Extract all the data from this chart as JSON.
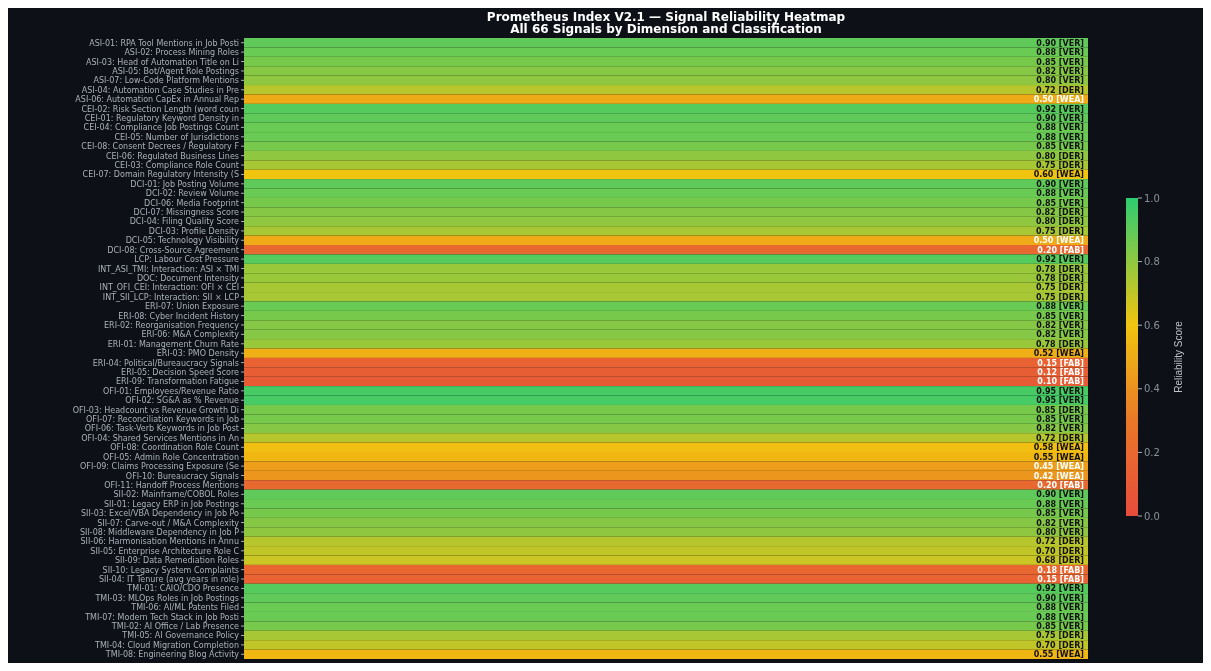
{
  "chart_data": {
    "type": "heatmap",
    "title": "Prometheus Index V2.1 — Signal Reliability Heatmap",
    "subtitle": "All 66 Signals by Dimension and Classification",
    "clabel": "Reliability Score",
    "categories": [
      null
    ],
    "y_categories": [
      "ASI-01: RPA Tool Mentions in Job Posti",
      "ASI-02: Process Mining Roles",
      "ASI-03: Head of Automation Title on Li",
      "ASI-05: Bot/Agent Role Postings",
      "ASI-07: Low-Code Platform Mentions",
      "ASI-04: Automation Case Studies in Pre",
      "ASI-06: Automation CapEx in Annual Rep",
      "CEI-02: Risk Section Length (word coun",
      "CEI-01: Regulatory Keyword Density in",
      "CEI-04: Compliance Job Postings Count",
      "CEI-05: Number of Jurisdictions",
      "CEI-08: Consent Decrees / Regulatory F",
      "CEI-06: Regulated Business Lines",
      "CEI-03: Compliance Role Count",
      "CEI-07: Domain Regulatory Intensity (S",
      "DCI-01: Job Posting Volume",
      "DCI-02: Review Volume",
      "DCI-06: Media Footprint",
      "DCI-07: Missingness Score",
      "DCI-04: Filing Quality Score",
      "DCI-03: Profile Density",
      "DCI-05: Technology Visibility",
      "DCI-08: Cross-Source Agreement",
      "LCP: Labour Cost Pressure",
      "INT_ASI_TMI: Interaction: ASI × TMI",
      "DOC: Document Intensity",
      "INT_OFI_CEI: Interaction: OFI × CEI",
      "INT_SII_LCP: Interaction: SII × LCP",
      "ERI-07: Union Exposure",
      "ERI-08: Cyber Incident History",
      "ERI-02: Reorganisation Frequency",
      "ERI-06: M&A Complexity",
      "ERI-01: Management Churn Rate",
      "ERI-03: PMO Density",
      "ERI-04: Political/Bureaucracy Signals",
      "ERI-05: Decision Speed Score",
      "ERI-09: Transformation Fatigue",
      "OFI-01: Employees/Revenue Ratio",
      "OFI-02: SG&A as % Revenue",
      "OFI-03: Headcount vs Revenue Growth Di",
      "OFI-07: Reconciliation Keywords in Job",
      "OFI-06: Task-Verb Keywords in Job Post",
      "OFI-04: Shared Services Mentions in An",
      "OFI-08: Coordination Role Count",
      "OFI-05: Admin Role Concentration",
      "OFI-09: Claims Processing Exposure (Se",
      "OFI-10: Bureaucracy Signals",
      "OFI-11: Handoff Process Mentions",
      "SII-02: Mainframe/COBOL Roles",
      "SII-01: Legacy ERP in Job Postings",
      "SII-03: Excel/VBA Dependency in Job Po",
      "SII-07: Carve-out / M&A Complexity",
      "SII-08: Middleware Dependency in Job P",
      "SII-06: Harmonisation Mentions in Annu",
      "SII-05: Enterprise Architecture Role C",
      "SII-09: Data Remediation Roles",
      "SII-10: Legacy System Complaints",
      "SII-04: IT Tenure (avg years in role)",
      "TMI-01: CAIO/CDO Presence",
      "TMI-03: MLOps Roles in Job Postings",
      "TMI-06: AI/ML Patents Filed",
      "TMI-07: Modern Tech Stack in Job Posti",
      "TMI-02: AI Office / Lab Presence",
      "TMI-05: AI Governance Policy",
      "TMI-04: Cloud Migration Completion",
      "TMI-08: Engineering Blog Activity"
    ],
    "cells": [
      [
        0.9
      ],
      [
        0.88
      ],
      [
        0.85
      ],
      [
        0.82
      ],
      [
        0.8
      ],
      [
        0.72
      ],
      [
        0.5
      ],
      [
        0.92
      ],
      [
        0.9
      ],
      [
        0.88
      ],
      [
        0.88
      ],
      [
        0.85
      ],
      [
        0.8
      ],
      [
        0.75
      ],
      [
        0.6
      ],
      [
        0.9
      ],
      [
        0.88
      ],
      [
        0.85
      ],
      [
        0.82
      ],
      [
        0.8
      ],
      [
        0.75
      ],
      [
        0.5
      ],
      [
        0.2
      ],
      [
        0.92
      ],
      [
        0.78
      ],
      [
        0.78
      ],
      [
        0.75
      ],
      [
        0.75
      ],
      [
        0.88
      ],
      [
        0.85
      ],
      [
        0.82
      ],
      [
        0.82
      ],
      [
        0.78
      ],
      [
        0.52
      ],
      [
        0.15
      ],
      [
        0.12
      ],
      [
        0.1
      ],
      [
        0.95
      ],
      [
        0.95
      ],
      [
        0.85
      ],
      [
        0.85
      ],
      [
        0.82
      ],
      [
        0.72
      ],
      [
        0.58
      ],
      [
        0.55
      ],
      [
        0.45
      ],
      [
        0.42
      ],
      [
        0.2
      ],
      [
        0.9
      ],
      [
        0.88
      ],
      [
        0.85
      ],
      [
        0.82
      ],
      [
        0.8
      ],
      [
        0.72
      ],
      [
        0.7
      ],
      [
        0.68
      ],
      [
        0.18
      ],
      [
        0.15
      ],
      [
        0.92
      ],
      [
        0.9
      ],
      [
        0.88
      ],
      [
        0.88
      ],
      [
        0.85
      ],
      [
        0.75
      ],
      [
        0.7
      ],
      [
        0.55
      ]
    ],
    "cell_labels": [
      [
        "0.90 [VER]"
      ],
      [
        "0.88 [VER]"
      ],
      [
        "0.85 [VER]"
      ],
      [
        "0.82 [VER]"
      ],
      [
        "0.80 [VER]"
      ],
      [
        "0.72 [DER]"
      ],
      [
        "0.50 [WEA]"
      ],
      [
        "0.92 [VER]"
      ],
      [
        "0.90 [VER]"
      ],
      [
        "0.88 [VER]"
      ],
      [
        "0.88 [VER]"
      ],
      [
        "0.85 [VER]"
      ],
      [
        "0.80 [DER]"
      ],
      [
        "0.75 [DER]"
      ],
      [
        "0.60 [WEA]"
      ],
      [
        "0.90 [VER]"
      ],
      [
        "0.88 [VER]"
      ],
      [
        "0.85 [VER]"
      ],
      [
        "0.82 [DER]"
      ],
      [
        "0.80 [DER]"
      ],
      [
        "0.75 [DER]"
      ],
      [
        "0.50 [WEA]"
      ],
      [
        "0.20 [FAB]"
      ],
      [
        "0.92 [VER]"
      ],
      [
        "0.78 [DER]"
      ],
      [
        "0.78 [DER]"
      ],
      [
        "0.75 [DER]"
      ],
      [
        "0.75 [DER]"
      ],
      [
        "0.88 [VER]"
      ],
      [
        "0.85 [VER]"
      ],
      [
        "0.82 [VER]"
      ],
      [
        "0.82 [VER]"
      ],
      [
        "0.78 [DER]"
      ],
      [
        "0.52 [WEA]"
      ],
      [
        "0.15 [FAB]"
      ],
      [
        "0.12 [FAB]"
      ],
      [
        "0.10 [FAB]"
      ],
      [
        "0.95 [VER]"
      ],
      [
        "0.95 [VER]"
      ],
      [
        "0.85 [DER]"
      ],
      [
        "0.85 [VER]"
      ],
      [
        "0.82 [VER]"
      ],
      [
        "0.72 [DER]"
      ],
      [
        "0.58 [WEA]"
      ],
      [
        "0.55 [WEA]"
      ],
      [
        "0.45 [WEA]"
      ],
      [
        "0.42 [WEA]"
      ],
      [
        "0.20 [FAB]"
      ],
      [
        "0.90 [VER]"
      ],
      [
        "0.88 [VER]"
      ],
      [
        "0.85 [VER]"
      ],
      [
        "0.82 [VER]"
      ],
      [
        "0.80 [VER]"
      ],
      [
        "0.72 [DER]"
      ],
      [
        "0.70 [DER]"
      ],
      [
        "0.68 [DER]"
      ],
      [
        "0.18 [FAB]"
      ],
      [
        "0.15 [FAB]"
      ],
      [
        "0.92 [VER]"
      ],
      [
        "0.90 [VER]"
      ],
      [
        "0.88 [VER]"
      ],
      [
        "0.88 [VER]"
      ],
      [
        "0.85 [VER]"
      ],
      [
        "0.75 [DER]"
      ],
      [
        "0.70 [DER]"
      ],
      [
        "0.55 [WEA]"
      ]
    ],
    "clim": [
      0,
      1
    ],
    "cticks": [
      {
        "value": 0,
        "label": "0.0"
      },
      {
        "value": 0.2,
        "label": "0.2"
      },
      {
        "value": 0.4,
        "label": "0.4"
      },
      {
        "value": 0.6,
        "label": "0.6"
      },
      {
        "value": 0.8,
        "label": "0.8"
      },
      {
        "value": 1,
        "label": "1.0"
      }
    ]
  }
}
